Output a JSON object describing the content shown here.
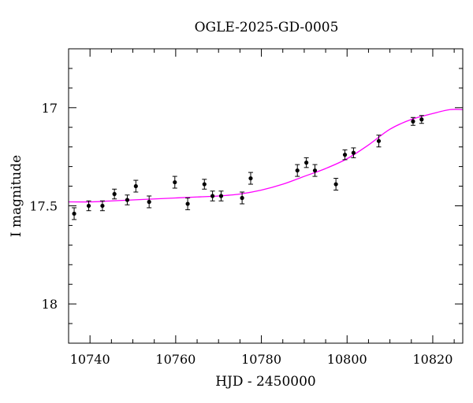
{
  "chart_data": {
    "type": "scatter",
    "title": "OGLE-2025-GD-0005",
    "xlabel": "HJD - 2450000",
    "ylabel": "I magnitude",
    "xlim": [
      10735,
      10827
    ],
    "ylim": [
      18.2,
      16.7
    ],
    "y_inverted": true,
    "x_ticks": [
      10740,
      10760,
      10780,
      10800,
      10820
    ],
    "x_tick_labels": [
      "10740",
      "10760",
      "10780",
      "10800",
      "10820"
    ],
    "y_ticks": [
      17,
      17.5,
      18
    ],
    "y_tick_labels": [
      "17",
      "17.5",
      "18"
    ],
    "grid": false,
    "colors": {
      "points": "#000000",
      "model": "#ff00ff",
      "frame": "#000000"
    },
    "series": [
      {
        "kind": "points_with_errorbars",
        "x": [
          10736.3,
          10739.7,
          10742.9,
          10745.7,
          10748.7,
          10750.7,
          10753.8,
          10759.8,
          10762.8,
          10766.7,
          10768.6,
          10770.6,
          10775.5,
          10777.5,
          10788.4,
          10790.5,
          10792.5,
          10797.4,
          10799.5,
          10801.5,
          10807.4,
          10815.4,
          10817.4
        ],
        "y": [
          17.54,
          17.5,
          17.5,
          17.44,
          17.47,
          17.4,
          17.48,
          17.38,
          17.49,
          17.39,
          17.45,
          17.45,
          17.46,
          17.36,
          17.32,
          17.28,
          17.32,
          17.39,
          17.24,
          17.23,
          17.17,
          17.07,
          17.06
        ],
        "yerr": [
          0.03,
          0.025,
          0.025,
          0.025,
          0.025,
          0.03,
          0.03,
          0.03,
          0.03,
          0.025,
          0.025,
          0.025,
          0.03,
          0.03,
          0.03,
          0.025,
          0.03,
          0.03,
          0.025,
          0.025,
          0.03,
          0.02,
          0.02
        ]
      },
      {
        "kind": "model_curve",
        "x": [
          10735,
          10740,
          10745,
          10750,
          10755,
          10760,
          10765,
          10770,
          10775,
          10780,
          10785,
          10790,
          10795,
          10800,
          10805,
          10810,
          10815,
          10820,
          10824,
          10827
        ],
        "y": [
          17.48,
          17.48,
          17.475,
          17.47,
          17.465,
          17.46,
          17.455,
          17.45,
          17.44,
          17.42,
          17.39,
          17.35,
          17.31,
          17.26,
          17.19,
          17.11,
          17.06,
          17.03,
          17.01,
          17.01
        ]
      }
    ]
  }
}
